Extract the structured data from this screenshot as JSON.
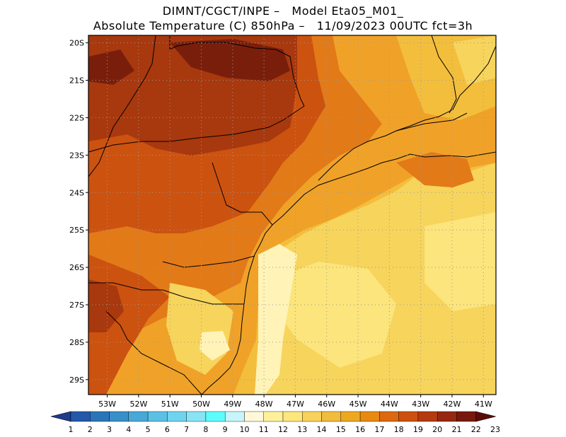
{
  "title": {
    "line1": "DIMNT/CGCT/INPE –   Model Eta05_M01_",
    "line2": "Absolute Temperature (C) 850hPa –   11/09/2023 00UTC fct=3h"
  },
  "map": {
    "lat_range_deg_south": [
      19.8,
      29.4
    ],
    "lon_range_deg_west": [
      53.6,
      40.6
    ],
    "lat_ticks": [
      "20S",
      "21S",
      "22S",
      "23S",
      "24S",
      "25S",
      "26S",
      "27S",
      "28S",
      "29S"
    ],
    "lon_ticks": [
      "53W",
      "52W",
      "51W",
      "50W",
      "49W",
      "48W",
      "47W",
      "46W",
      "45W",
      "44W",
      "43W",
      "42W",
      "41W"
    ],
    "gridlines": "dotted",
    "coastline_and_state_borders": "black"
  },
  "colorbar": {
    "labels": [
      "1",
      "2",
      "3",
      "4",
      "5",
      "6",
      "7",
      "8",
      "9",
      "10",
      "11",
      "12",
      "13",
      "14",
      "15",
      "16",
      "17",
      "18",
      "19",
      "20",
      "21",
      "22",
      "23"
    ],
    "colors": [
      "#1e3c8c",
      "#2458a8",
      "#2c74b8",
      "#3890c8",
      "#48a8d8",
      "#5cc0e4",
      "#70d4ee",
      "#88e4f4",
      "#5cfcfc",
      "#c8f4fc",
      "#fff8d8",
      "#fff09c",
      "#fde67c",
      "#f8d25c",
      "#f2bc3c",
      "#eea820",
      "#e88a10",
      "#dc6810",
      "#cc5010",
      "#b43a10",
      "#962810",
      "#78180c",
      "#5c0c08"
    ]
  },
  "fields": {
    "very_hot": "#7a1e0c",
    "hot": "#a8380e",
    "warm": "#cc5210",
    "mild_orange": "#e27a18",
    "orange": "#f0a228",
    "yellow_orange": "#f3be3c",
    "yellow": "#f7d45c",
    "pale_yellow": "#fbe57c",
    "cream": "#fff3b8"
  }
}
